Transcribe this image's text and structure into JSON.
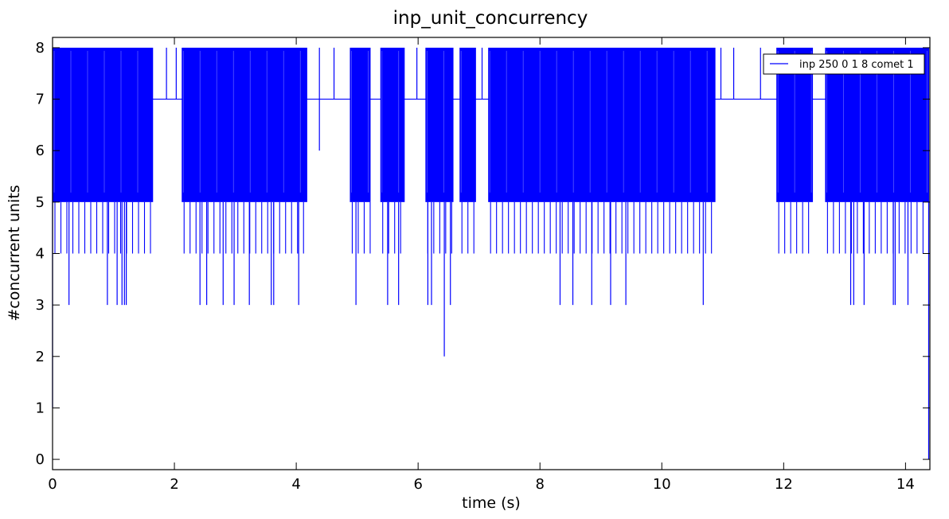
{
  "chart_data": {
    "type": "line",
    "title": "inp_unit_concurrency",
    "xlabel": "time (s)",
    "ylabel": "#concurrent units",
    "xlim": [
      0,
      14.4
    ],
    "ylim": [
      -0.2,
      8.2
    ],
    "x_ticks": [
      0,
      2,
      4,
      6,
      8,
      10,
      12,
      14
    ],
    "y_ticks": [
      0,
      1,
      2,
      3,
      4,
      5,
      6,
      7,
      8
    ],
    "grid": false,
    "legend_position": "top-right",
    "series": [
      {
        "name": "inp 250 0 1 8 comet 1",
        "color": "#0000ff",
        "baseline_value": 7,
        "start": {
          "x": 0.0,
          "values": [
            1,
            8
          ]
        },
        "end": {
          "x": 14.38,
          "values": [
            8,
            0
          ]
        },
        "dense_segments": [
          {
            "x_start": 0.0,
            "x_end": 1.65,
            "high": 8,
            "low": 5
          },
          {
            "x_start": 2.12,
            "x_end": 4.18,
            "high": 8,
            "low": 5
          },
          {
            "x_start": 4.88,
            "x_end": 5.22,
            "high": 8,
            "low": 5
          },
          {
            "x_start": 5.38,
            "x_end": 5.78,
            "high": 8,
            "low": 5
          },
          {
            "x_start": 6.12,
            "x_end": 6.58,
            "high": 8,
            "low": 5
          },
          {
            "x_start": 6.68,
            "x_end": 6.95,
            "high": 8,
            "low": 5
          },
          {
            "x_start": 7.15,
            "x_end": 10.88,
            "high": 8,
            "low": 5
          },
          {
            "x_start": 11.88,
            "x_end": 12.48,
            "high": 8,
            "low": 5
          },
          {
            "x_start": 12.68,
            "x_end": 14.38,
            "high": 8,
            "low": 5
          }
        ],
        "isolated_spikes": [
          {
            "x": 1.87,
            "value": 8
          },
          {
            "x": 2.03,
            "value": 8
          },
          {
            "x": 4.38,
            "value": 6
          },
          {
            "x": 4.38,
            "value": 8
          },
          {
            "x": 4.62,
            "value": 8
          },
          {
            "x": 5.98,
            "value": 8
          },
          {
            "x": 7.05,
            "value": 8
          },
          {
            "x": 10.97,
            "value": 8
          },
          {
            "x": 11.18,
            "value": 8
          },
          {
            "x": 11.62,
            "value": 8
          },
          {
            "x": 11.7,
            "value": 7
          }
        ],
        "dips": [
          {
            "x": 0.27,
            "value": 3
          },
          {
            "x": 0.9,
            "value": 3
          },
          {
            "x": 1.06,
            "value": 3
          },
          {
            "x": 1.14,
            "value": 3
          },
          {
            "x": 1.18,
            "value": 3
          },
          {
            "x": 1.21,
            "value": 3
          },
          {
            "x": 2.42,
            "value": 3
          },
          {
            "x": 2.53,
            "value": 3
          },
          {
            "x": 2.8,
            "value": 3
          },
          {
            "x": 2.98,
            "value": 3
          },
          {
            "x": 3.23,
            "value": 3
          },
          {
            "x": 3.59,
            "value": 3
          },
          {
            "x": 3.63,
            "value": 3
          },
          {
            "x": 4.04,
            "value": 3
          },
          {
            "x": 4.98,
            "value": 3
          },
          {
            "x": 5.5,
            "value": 3
          },
          {
            "x": 5.68,
            "value": 3
          },
          {
            "x": 6.16,
            "value": 3
          },
          {
            "x": 6.22,
            "value": 3
          },
          {
            "x": 6.43,
            "value": 2
          },
          {
            "x": 6.53,
            "value": 3
          },
          {
            "x": 8.33,
            "value": 3
          },
          {
            "x": 8.54,
            "value": 3
          },
          {
            "x": 8.85,
            "value": 3
          },
          {
            "x": 9.16,
            "value": 3
          },
          {
            "x": 9.41,
            "value": 3
          },
          {
            "x": 10.68,
            "value": 3
          },
          {
            "x": 13.1,
            "value": 3
          },
          {
            "x": 13.15,
            "value": 3
          },
          {
            "x": 13.32,
            "value": 3
          },
          {
            "x": 13.8,
            "value": 3
          },
          {
            "x": 13.83,
            "value": 3
          },
          {
            "x": 14.04,
            "value": 3
          }
        ]
      }
    ]
  }
}
